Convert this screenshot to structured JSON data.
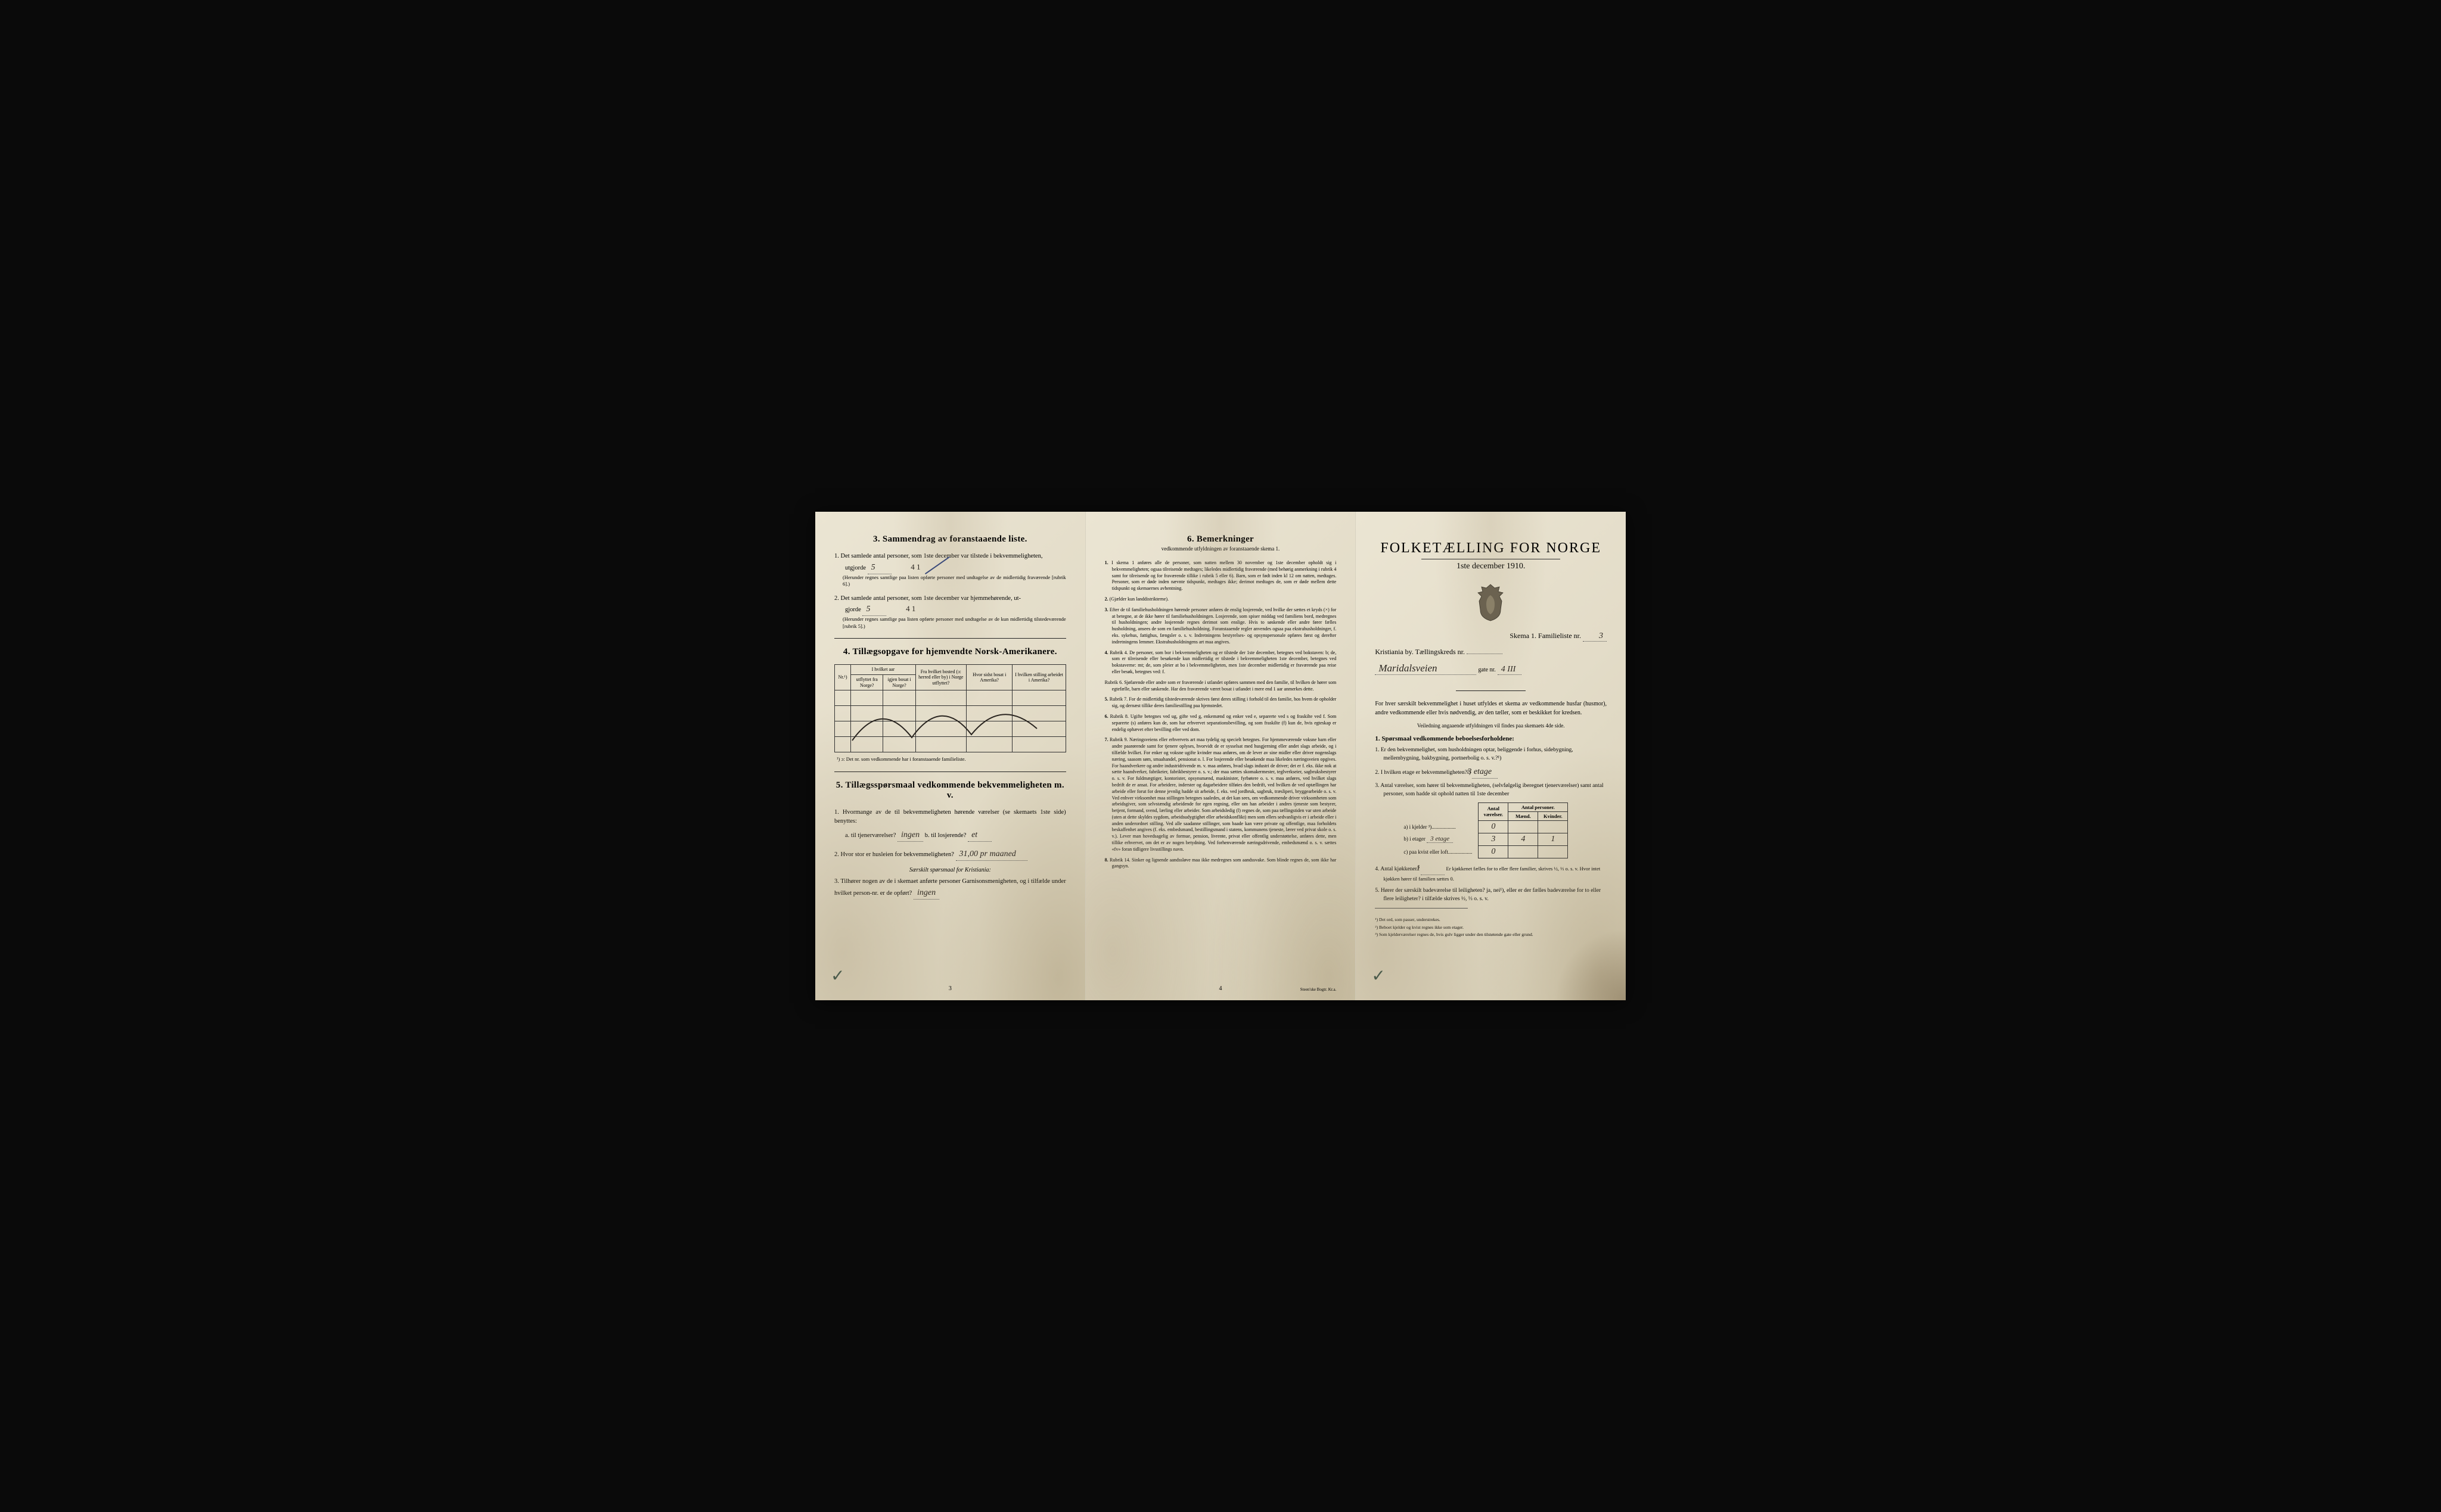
{
  "page1": {
    "section3_title": "3.  Sammendrag av foranstaaende liste.",
    "q1_text": "Det samlede antal personer, som 1ste december var tilstede i bekvemmeligheten,",
    "q1_label": "utgjorde",
    "q1_value": "5",
    "q1_struck": "4  1",
    "q1_fine": "(Herunder regnes samtlige paa listen opførte personer med undtagelse av de midlertidig fraværende [rubrik 6].)",
    "q2_text": "Det samlede antal personer, som 1ste december var hjemmehørende, ut-",
    "q2_label": "gjorde",
    "q2_value": "5",
    "q2_struck": "4  1",
    "q2_fine": "(Herunder regnes samtlige paa listen opførte personer med undtagelse av de kun midlertidig tilstedeværende [rubrik 5].)",
    "section4_title": "4.  Tillægsopgave for hjemvendte Norsk-Amerikanere.",
    "table4_headers": {
      "nr": "Nr.¹)",
      "col1_top": "I hvilket aar",
      "col1a": "utflyttet fra Norge?",
      "col1b": "igjen bosat i Norge?",
      "col2": "Fra hvilket bosted (ɔ: herred eller by) i Norge utflyttet?",
      "col3": "Hvor sidst bosat i Amerika?",
      "col4": "I hvilken stilling arbeidet i Amerika?"
    },
    "table4_footnote": "¹) ɔ: Det nr. som vedkommende har i foranstaaende familieliste.",
    "section5_title": "5.  Tillægsspørsmaal vedkommende bekvemmeligheten m. v.",
    "s5_q1": "Hvormange av de til bekvemmeligheten hørende værelser (se skemaets 1ste side) benyttes:",
    "s5_q1a_label": "a. til tjenerværelser?",
    "s5_q1a_value": "ingen",
    "s5_q1b_label": "b. til losjerende?",
    "s5_q1b_value": "et",
    "s5_q2_label": "Hvor stor er husleien for bekvemmeligheten?",
    "s5_q2_value": "31,00 pr maaned",
    "s5_italic": "Særskilt spørsmaal for Kristiania:",
    "s5_q3": "Tilhører nogen av de i skemaet anførte personer Garnisonsmenigheten, og i tilfælde under hvilket person-nr. er de opført?",
    "s5_q3_value": "ingen",
    "page_num": "3"
  },
  "page2": {
    "section6_title": "6.  Bemerkninger",
    "section6_sub": "vedkommende utfyldningen av foranstaaende skema 1.",
    "remarks": [
      {
        "n": "1.",
        "t": "I skema 1 anføres alle de personer, som natten mellem 30 november og 1ste december opholdt sig i bekvemmeligheten; ogsaa tilreisende medtages; likeledes midlertidig fraværende (med behørig anmerkning i rubrik 4 samt for tilreisende og for fraværende tillike i rubrik 5 eller 6). Barn, som er født inden kl 12 om natten, medtages. Personer, som er døde inden nævnte tidspunkt, medtages ikke; derimot medtages de, som er døde mellem dette tidspunkt og skemaernes avhentning."
      },
      {
        "n": "2.",
        "t": "(Gjælder kun landdistrikterne)."
      },
      {
        "n": "3.",
        "t": "Efter de til familiehusholdningen hørende personer anføres de enslig losjerende, ved hvilke der sættes et kryds (×) for at betegne, at de ikke hører til familiehusholdningen. Losjerende, som spiser middag ved familiens bord, medregnes til husholdningen; andre losjerende regnes derimot som enslige. Hvis to søskende eller andre fører fælles husholdning, ansees de som en familiehusholdning. Foranstaaende regler anvendes ogsaa paa ekstrahusholdninger, f. eks. sykehus, fattighus, fængsler o. s. v. Indretningens bestyrelses- og opsynspersonale opføres først og derefter indretningens lemmer. Ekstrahusholdningens art maa angives."
      },
      {
        "n": "4.",
        "t": "Rubrik 4. De personer, som bor i bekvemmeligheten og er tilstede der 1ste december, betegnes ved bokstaven: b; de, som er tilreisende eller besøkende kun midlertidig er tilstede i bekvemmeligheten 1ste december, betegnes ved bokstaverne: mt; de, som pleier at bo i bekvemmeligheten, men 1ste december midlertidig er fraværende paa reise eller besøk, betegnes ved: f."
      },
      {
        "n": "",
        "t": "Rubrik 6. Sjøfarende eller andre som er fraværende i utlandet opføres sammen med den familie, til hvilken de hører som egtefælle, barn eller søskende. Har den fraværende været bosat i utlandet i mere end 1 aar anmerkes dette."
      },
      {
        "n": "5.",
        "t": "Rubrik 7. For de midlertidig tilstedeværende skrives først deres stilling i forhold til den familie, hos hvem de opholder sig, og dernæst tillike deres familiestilling paa hjemstedet."
      },
      {
        "n": "6.",
        "t": "Rubrik 8. Ugifte betegnes ved ug, gifte ved g, enkemænd og enker ved e, separerte ved s og fraskilte ved f. Som separerte (s) anføres kun de, som har erhvervet separationsbevilling, og som fraskilte (f) kun de, hvis egteskap er endelig ophævet efter bevilling eller ved dom."
      },
      {
        "n": "7.",
        "t": "Rubrik 9. Næringsveiens eller erhvervets art maa tydelig og specielt betegnes. For hjemmeværende voksne barn eller andre paarørende samt for tjenere oplyses, hvorvidt de er sysselsat med husgjerning eller andet slags arbeide, og i tilfælde hvilket. For enker og voksne ugifte kvinder maa anføres, om de lever av sine midler eller driver nogenslags næring, saasom søm, smaahandel, pensionat o. l. For losjerende eller besøkende maa likeledes næringsveien opgives. For haandverkere og andre industridrivende m. v. maa anføres, hvad slags industri de driver; det er f. eks. ikke nok at sætte haandverker, fabrikeier, fabrikbestyrer o. s. v.; der maa sættes skomakermester, teglverkseier, sagbruksbestyrer o. s. v. For fuldmægtiger, kontorister, opsynsmænd, maskinister, fyrbøtere o. s. v. maa anføres, ved hvilket slags bedrift de er ansat. For arbeidere, inderster og dagarbeidere tilføies den bedrift, ved hvilken de ved optællingen har arbeide eller forut for denne jevnlig hadde sit arbeide, f. eks. ved jordbruk, sagbruk, træsliperi, bryggearbeide o. s. v. Ved enhver virksomhet maa stillingen betegnes saaledes, at det kan sees, om vedkommende driver virksomheten som arbeidsgiver, som selvstændig arbeidende for egen regning, eller om han arbeider i andres tjeneste som bestyrer, betjent, formand, svend, lærling eller arbeider. Som arbeidsledig (l) regnes de, som paa tællingstiden var uten arbeide (uten at dette skyldes sygdom, arbeidsudygtighet eller arbeidskonflikt) men som ellers sedvanligvis er i arbeide eller i anden underordnet stilling. Ved alle saadanne stillinger, som baade kan være private og offentlige, maa forholdets beskaffenhet angives (f. eks. embedsmand, bestillingsmand i statens, kommunens tjeneste, lærer ved privat skole o. s. v.). Lever man hovedsagelig av formue, pension, livrente, privat eller offentlig understøttelse, anføres dette, men tillike erhvervet, om det er av nogen betydning. Ved forhenværende næringsdrivende, embedsmænd o. s. v. sættes «fv» foran tidligere livsstillings navn."
      },
      {
        "n": "8.",
        "t": "Rubrik 14. Sinker og lignende aandssløve maa ikke medregnes som aandssvake. Som blinde regnes de, som ikke har gangsyn."
      }
    ],
    "page_num": "4",
    "printer": "Steen'ske Bogtr.  Kr.a."
  },
  "page3": {
    "main_title": "FOLKETÆLLING FOR NORGE",
    "subtitle": "1ste december 1910.",
    "schema_label": "Skema 1.   Familieliste nr.",
    "schema_value": "3",
    "city_label": "Kristiania by.   Tællingskreds nr.",
    "city_value": "",
    "street_value": "Maridalsveien",
    "street_suffix": "gate nr.",
    "street_num": "4 III",
    "body1": "For hver særskilt bekvemmelighet i huset utfyldes et skema av vedkommende husfar (husmor), andre vedkommende eller hvis nødvendig, av den tæller, som er beskikket for kredsen.",
    "body2": "Veiledning angaaende utfyldningen vil findes paa skemaets 4de side.",
    "q1_title": "1. Spørsmaal vedkommende beboelsesforholdene:",
    "items": [
      {
        "n": "1.",
        "t": "Er den bekvemmelighet, som husholdningen optar, beliggende i forhus, sidebygning, mellembygning, bakbygning, portnerbolig o. s. v.?¹)"
      },
      {
        "n": "2.",
        "t": "I hvilken etage er bekvemmeligheten?²)",
        "v": "3 etage"
      },
      {
        "n": "3.",
        "t": "Antal værelser, som hører til bekvemmeligheten, (selvfølgelig iberegnet tjenerværelser) samt antal personer, som hadde sit ophold natten til 1ste december"
      }
    ],
    "counts_table": {
      "headers": [
        "",
        "Antal værelser.",
        "Mænd.",
        "Kvinder."
      ],
      "header_group": "Antal personer.",
      "rows": [
        {
          "label": "a) i kjelder ³)",
          "vals": [
            "0",
            "",
            ""
          ]
        },
        {
          "label": "b) i etager",
          "extra": "3 etage",
          "vals": [
            "3",
            "4",
            "1"
          ]
        },
        {
          "label": "c) paa kvist eller loft",
          "vals": [
            "0",
            "",
            ""
          ]
        }
      ]
    },
    "item4": "Antal kjøkkener? 1   Er kjøkkenet fælles for to eller flere familier, skrives ½, ⅓ o. s. v.  Hvor intet kjøkken hører til familien sættes 0.",
    "item4_value": "1",
    "item5": "Hører der særskilt badeværelse til leiligheten?  ja, nei¹), eller er der fælles badeværelse for to eller flere leiligheter?  i tilfælde skrives ½, ⅓ o. s. v.",
    "footnotes": [
      "¹) Det ord, som passer, understrekes.",
      "²) Beboet kjelder og kvist regnes ikke som etager.",
      "³) Som kjelderværelser regnes de, hvis gulv ligger under den tilstøtende gate eller grund."
    ]
  },
  "colors": {
    "paper": "#e8e2d0",
    "ink": "#1a1814",
    "handwriting": "#2a2520",
    "blue_pencil": "#3a4a7a"
  }
}
